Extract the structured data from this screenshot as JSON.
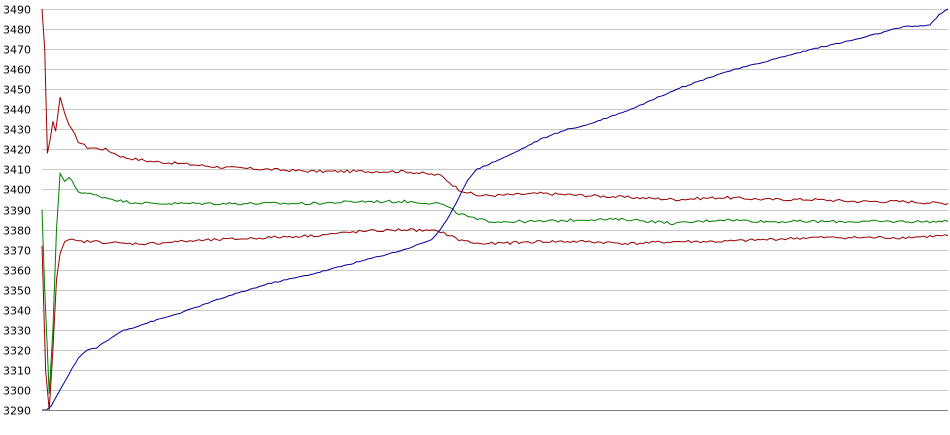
{
  "chart_data": {
    "type": "line",
    "title": "",
    "xlabel": "",
    "ylabel": "",
    "ylim": [
      3290,
      3490
    ],
    "yticks": [
      3490,
      3480,
      3470,
      3460,
      3450,
      3440,
      3430,
      3420,
      3410,
      3400,
      3390,
      3380,
      3370,
      3360,
      3350,
      3340,
      3330,
      3320,
      3310,
      3300,
      3290
    ],
    "grid": true,
    "legend": "none",
    "xlim": [
      0,
      100
    ],
    "series": [
      {
        "color": "#9b0000",
        "x": [
          0,
          0.3,
          0.6,
          0.9,
          1.2,
          1.5,
          2,
          2.5,
          3,
          4,
          5,
          7,
          9,
          12,
          15,
          20,
          25,
          30,
          35,
          40,
          44,
          46,
          48,
          50,
          55,
          60,
          65,
          70,
          75,
          80,
          85,
          90,
          95,
          100
        ],
        "y": [
          3490,
          3470,
          3418,
          3425,
          3434,
          3429,
          3446,
          3438,
          3432,
          3424,
          3421,
          3420,
          3416,
          3414,
          3413,
          3411,
          3410,
          3409,
          3409,
          3409,
          3407,
          3400,
          3397,
          3397,
          3398,
          3397,
          3396,
          3395,
          3396,
          3395,
          3395,
          3394,
          3394,
          3393
        ]
      },
      {
        "color": "#007d00",
        "x": [
          0,
          0.3,
          0.8,
          1.2,
          1.6,
          2,
          2.5,
          3,
          4,
          5,
          7,
          9,
          12,
          15,
          20,
          25,
          30,
          35,
          40,
          44,
          46,
          48,
          50,
          55,
          60,
          65,
          70,
          75,
          80,
          85,
          90,
          95,
          100
        ],
        "y": [
          3390,
          3350,
          3298,
          3330,
          3380,
          3408,
          3404,
          3406,
          3399,
          3398,
          3396,
          3394,
          3393,
          3393,
          3393,
          3393,
          3393,
          3394,
          3394,
          3393,
          3388,
          3385,
          3384,
          3384,
          3385,
          3385,
          3383,
          3385,
          3384,
          3384,
          3384,
          3384,
          3384
        ]
      },
      {
        "color": "#9b0000",
        "x": [
          0,
          0.4,
          0.8,
          1.2,
          1.6,
          2,
          2.5,
          3,
          4,
          6,
          9,
          12,
          15,
          20,
          25,
          30,
          35,
          40,
          44,
          46,
          48,
          50,
          55,
          60,
          65,
          70,
          75,
          80,
          85,
          90,
          95,
          100
        ],
        "y": [
          3372,
          3310,
          3290,
          3320,
          3355,
          3368,
          3374,
          3375,
          3374,
          3374,
          3373,
          3373,
          3374,
          3375,
          3376,
          3377,
          3379,
          3380,
          3379,
          3375,
          3373,
          3373,
          3374,
          3374,
          3373,
          3374,
          3374,
          3375,
          3376,
          3376,
          3376,
          3377
        ]
      },
      {
        "color": "#00009b",
        "x": [
          0,
          0.5,
          1,
          2,
          3,
          4,
          5,
          6,
          7,
          8,
          9,
          10,
          12,
          15,
          20,
          25,
          30,
          35,
          40,
          43,
          44,
          45,
          46,
          47,
          48,
          49,
          50,
          52,
          55,
          58,
          60,
          65,
          70,
          75,
          80,
          85,
          90,
          95,
          98,
          99,
          100
        ],
        "y": [
          3290,
          3290,
          3292,
          3300,
          3308,
          3316,
          3320,
          3321,
          3324,
          3327,
          3330,
          3331,
          3334,
          3338,
          3346,
          3353,
          3358,
          3364,
          3370,
          3375,
          3380,
          3387,
          3396,
          3405,
          3410,
          3412,
          3414,
          3418,
          3425,
          3430,
          3432,
          3440,
          3450,
          3458,
          3464,
          3470,
          3475,
          3481,
          3482,
          3487,
          3490
        ]
      }
    ]
  }
}
